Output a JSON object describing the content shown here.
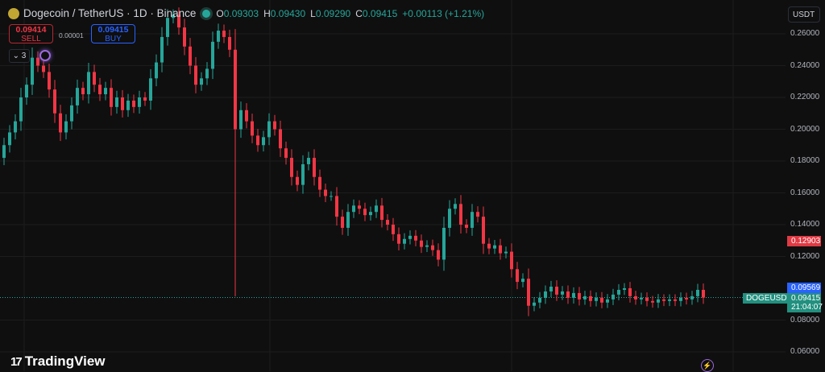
{
  "header": {
    "title": "Dogecoin / TetherUS · 1D · Binance",
    "open_label": "O",
    "open": "0.09303",
    "high_label": "H",
    "high": "0.09430",
    "low_label": "L",
    "low": "0.09290",
    "close_label": "C",
    "close": "0.09415",
    "change": "+0.00113 (+1.21%)"
  },
  "trade": {
    "sell_price": "0.09414",
    "sell_label": "SELL",
    "spread": "0.00001",
    "buy_price": "0.09415",
    "buy_label": "BUY"
  },
  "indicators_collapse": "3",
  "currency": "USDT",
  "price_labels": {
    "high_line": "0.12903",
    "blue_line": "0.09569",
    "symbol": "DOGEUSDT",
    "last": "0.09415",
    "countdown": "21:04:07"
  },
  "brand": "TradingView",
  "colors": {
    "up": "#26a69a",
    "down": "#f23645",
    "background": "#0f0f0f",
    "buy": "#2962ff"
  },
  "chart_data": {
    "type": "candlestick",
    "y_ticks": [
      "0.26000",
      "0.24000",
      "0.22000",
      "0.20000",
      "0.18000",
      "0.16000",
      "0.14000",
      "0.12000",
      "0.08000",
      "0.06000"
    ],
    "ylim": [
      0.054,
      0.278
    ],
    "grid": true,
    "last_price": 0.09415,
    "closes": [
      0.19,
      0.198,
      0.205,
      0.22,
      0.228,
      0.245,
      0.24,
      0.236,
      0.225,
      0.21,
      0.198,
      0.205,
      0.215,
      0.226,
      0.222,
      0.236,
      0.228,
      0.222,
      0.226,
      0.214,
      0.22,
      0.212,
      0.218,
      0.214,
      0.22,
      0.218,
      0.232,
      0.242,
      0.258,
      0.27,
      0.272,
      0.264,
      0.252,
      0.24,
      0.228,
      0.232,
      0.238,
      0.255,
      0.262,
      0.258,
      0.25,
      0.2,
      0.212,
      0.205,
      0.196,
      0.19,
      0.195,
      0.205,
      0.2,
      0.188,
      0.182,
      0.17,
      0.165,
      0.178,
      0.182,
      0.17,
      0.162,
      0.158,
      0.158,
      0.145,
      0.138,
      0.148,
      0.152,
      0.15,
      0.146,
      0.148,
      0.152,
      0.143,
      0.14,
      0.134,
      0.128,
      0.131,
      0.133,
      0.13,
      0.126,
      0.127,
      0.124,
      0.118,
      0.138,
      0.15,
      0.153,
      0.14,
      0.138,
      0.148,
      0.145,
      0.128,
      0.125,
      0.127,
      0.122,
      0.123,
      0.112,
      0.104,
      0.106,
      0.089,
      0.091,
      0.094,
      0.098,
      0.101,
      0.096,
      0.098,
      0.094,
      0.097,
      0.093,
      0.095,
      0.092,
      0.094,
      0.091,
      0.093,
      0.096,
      0.099,
      0.1,
      0.095,
      0.093,
      0.094,
      0.092,
      0.091,
      0.093,
      0.092,
      0.093,
      0.092,
      0.094,
      0.093,
      0.095,
      0.099,
      0.09415
    ],
    "first_open": 0.182,
    "low_extremes": {
      "41": 0.0949,
      "93": 0.0825
    }
  }
}
